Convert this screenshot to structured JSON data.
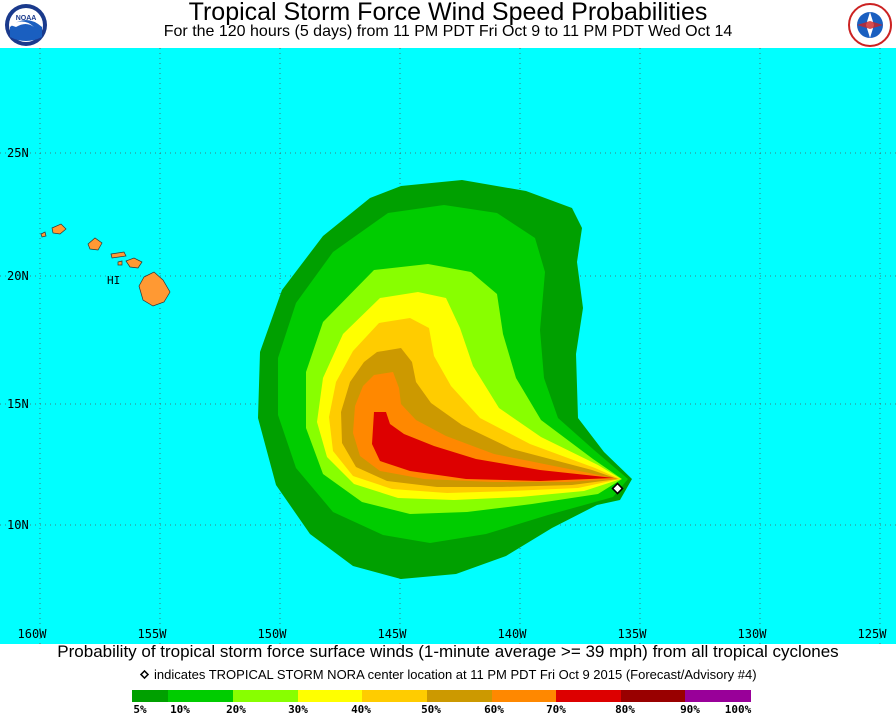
{
  "header": {
    "title": "Tropical Storm Force Wind Speed Probabilities",
    "subtitle": "For the 120 hours (5 days) from 11 PM PDT Fri Oct 9 to 11 PM PDT Wed Oct 14"
  },
  "logos": {
    "left_icon": "noaa-logo-icon",
    "right_icon": "national-weather-service-logo-icon"
  },
  "map": {
    "background": "#00ffff",
    "land_color": "#ff9933",
    "region_label": "HI",
    "lat_labels": [
      "25N",
      "20N",
      "15N",
      "10N"
    ],
    "lon_labels": [
      "160W",
      "155W",
      "150W",
      "145W",
      "140W",
      "135W",
      "130W",
      "125W"
    ],
    "storm_center": {
      "name": "TROPICAL STORM NORA",
      "lat": 11.4,
      "lon": -135.2
    }
  },
  "caption": "Probability of tropical storm force surface winds (1-minute average >= 39 mph) from all tropical cyclones",
  "marker_note": "indicates TROPICAL STORM NORA center location at 11 PM PDT Fri Oct 9 2015 (Forecast/Advisory #4)",
  "legend": {
    "bins": [
      {
        "range": "5-10%",
        "color": "#00a000"
      },
      {
        "range": "10-20%",
        "color": "#00cc00"
      },
      {
        "range": "20-30%",
        "color": "#88ff00"
      },
      {
        "range": "30-40%",
        "color": "#ffff00"
      },
      {
        "range": "40-50%",
        "color": "#ffcc00"
      },
      {
        "range": "50-60%",
        "color": "#cc9900"
      },
      {
        "range": "60-70%",
        "color": "#ff8800"
      },
      {
        "range": "70-80%",
        "color": "#dd0000"
      },
      {
        "range": "80-90%",
        "color": "#990000"
      },
      {
        "range": "90-100%",
        "color": "#990099"
      }
    ],
    "tick_labels": [
      "5%",
      "10%",
      "20%",
      "30%",
      "40%",
      "50%",
      "60%",
      "70%",
      "80%",
      "90%",
      "100%"
    ]
  }
}
